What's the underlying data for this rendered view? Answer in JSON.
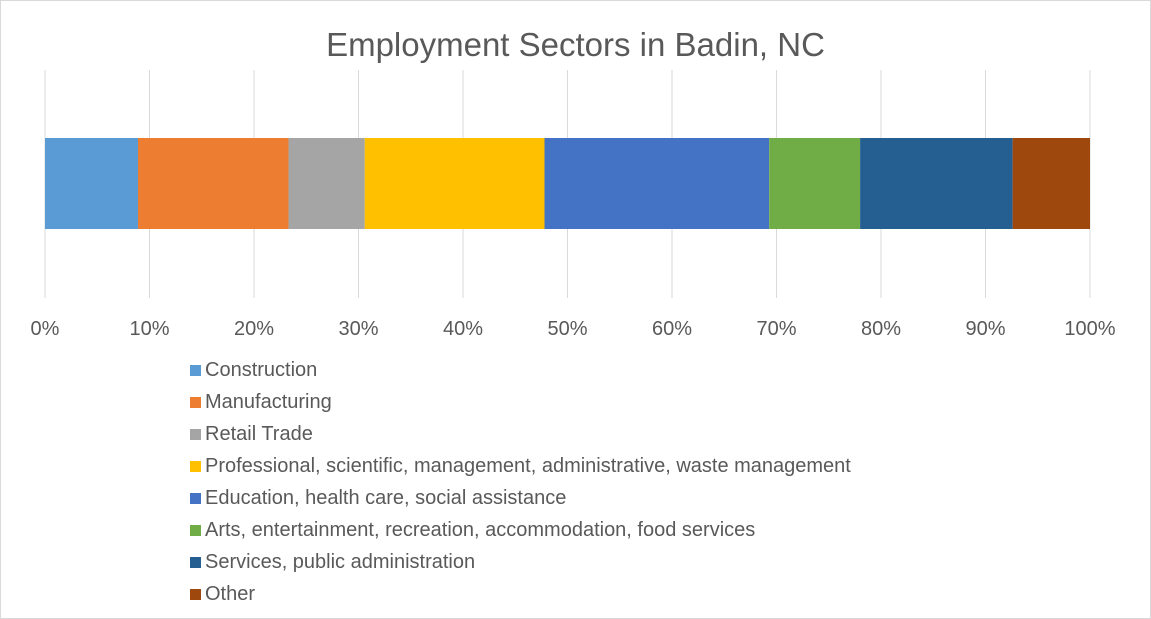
{
  "chart_data": {
    "type": "bar",
    "orientation": "horizontal",
    "stacked": "100%",
    "title": "Employment Sectors in Badin, NC",
    "xlabel": "",
    "ylabel": "",
    "xlim": [
      0,
      100
    ],
    "x_ticks": [
      "0%",
      "10%",
      "20%",
      "30%",
      "40%",
      "50%",
      "60%",
      "70%",
      "80%",
      "90%",
      "100%"
    ],
    "grid": "vertical",
    "legend_position": "bottom",
    "categories": [
      ""
    ],
    "series": [
      {
        "name": "Construction",
        "values": [
          8.9
        ],
        "color": "#5b9bd5"
      },
      {
        "name": "Manufacturing",
        "values": [
          14.4
        ],
        "color": "#ed7d31"
      },
      {
        "name": "Retail Trade",
        "values": [
          7.3
        ],
        "color": "#a5a5a5"
      },
      {
        "name": "Professional, scientific, management, administrative, waste management",
        "values": [
          17.2
        ],
        "color": "#ffc000"
      },
      {
        "name": "Education, health care, social assistance",
        "values": [
          21.5
        ],
        "color": "#4472c4"
      },
      {
        "name": "Arts, entertainment, recreation, accommodation, food services",
        "values": [
          8.7
        ],
        "color": "#70ad47"
      },
      {
        "name": "Services, public administration",
        "values": [
          14.6
        ],
        "color": "#255e91"
      },
      {
        "name": "Other",
        "values": [
          7.4
        ],
        "color": "#9e480e"
      }
    ]
  }
}
